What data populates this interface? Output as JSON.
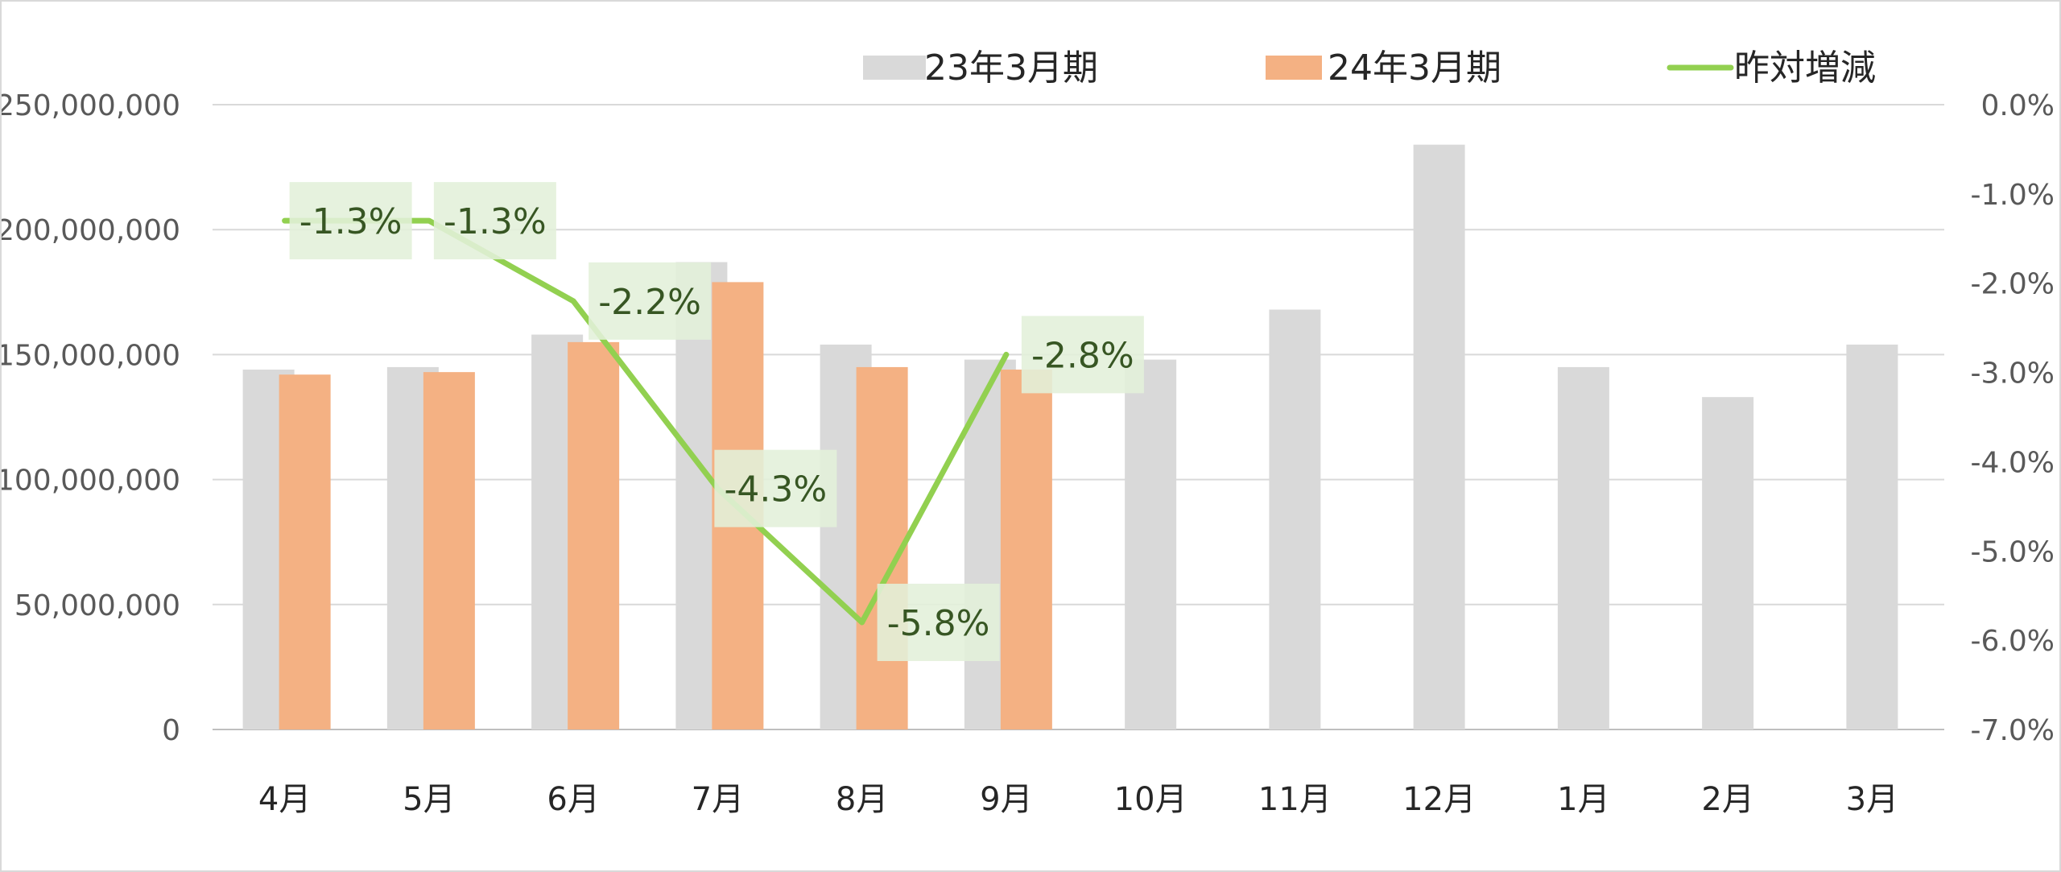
{
  "chart_data": {
    "type": "bar",
    "categories": [
      "4月",
      "5月",
      "6月",
      "7月",
      "8月",
      "9月",
      "10月",
      "11月",
      "12月",
      "1月",
      "2月",
      "3月"
    ],
    "series": [
      {
        "name": "23年3月期",
        "type": "bar",
        "axis": "left",
        "color": "#d9d9d9",
        "values": [
          144000000,
          145000000,
          158000000,
          187000000,
          154000000,
          148000000,
          148000000,
          168000000,
          234000000,
          145000000,
          133000000,
          154000000
        ]
      },
      {
        "name": "24年3月期",
        "type": "bar",
        "axis": "left",
        "color": "#f4b183",
        "values": [
          142000000,
          143000000,
          155000000,
          179000000,
          145000000,
          144000000,
          null,
          null,
          null,
          null,
          null,
          null
        ]
      },
      {
        "name": "昨対増減",
        "type": "line",
        "axis": "right",
        "color": "#92d050",
        "values": [
          -1.3,
          -1.3,
          -2.2,
          -4.3,
          -5.8,
          -2.8,
          null,
          null,
          null,
          null,
          null,
          null
        ],
        "data_labels": [
          "-1.3%",
          "-1.3%",
          "-2.2%",
          "-4.3%",
          "-5.8%",
          "-2.8%"
        ]
      }
    ],
    "y_left": {
      "ylim": [
        0,
        250000000
      ],
      "tick_values": [
        0,
        50000000,
        100000000,
        150000000,
        200000000,
        250000000
      ],
      "ticks": [
        "0",
        "50,000,000",
        "100,000,000",
        "150,000,000",
        "200,000,000",
        "250,000,000"
      ]
    },
    "y_right": {
      "ylim": [
        -7.0,
        0.0
      ],
      "tick_values": [
        0,
        -1,
        -2,
        -3,
        -4,
        -5,
        -6,
        -7
      ],
      "ticks": [
        "0.0%",
        "-1.0%",
        "-2.0%",
        "-3.0%",
        "-4.0%",
        "-5.0%",
        "-6.0%",
        "-7.0%"
      ]
    },
    "grid": true,
    "legend_position": "top-right",
    "data_label_background": "#e2f0d9"
  }
}
